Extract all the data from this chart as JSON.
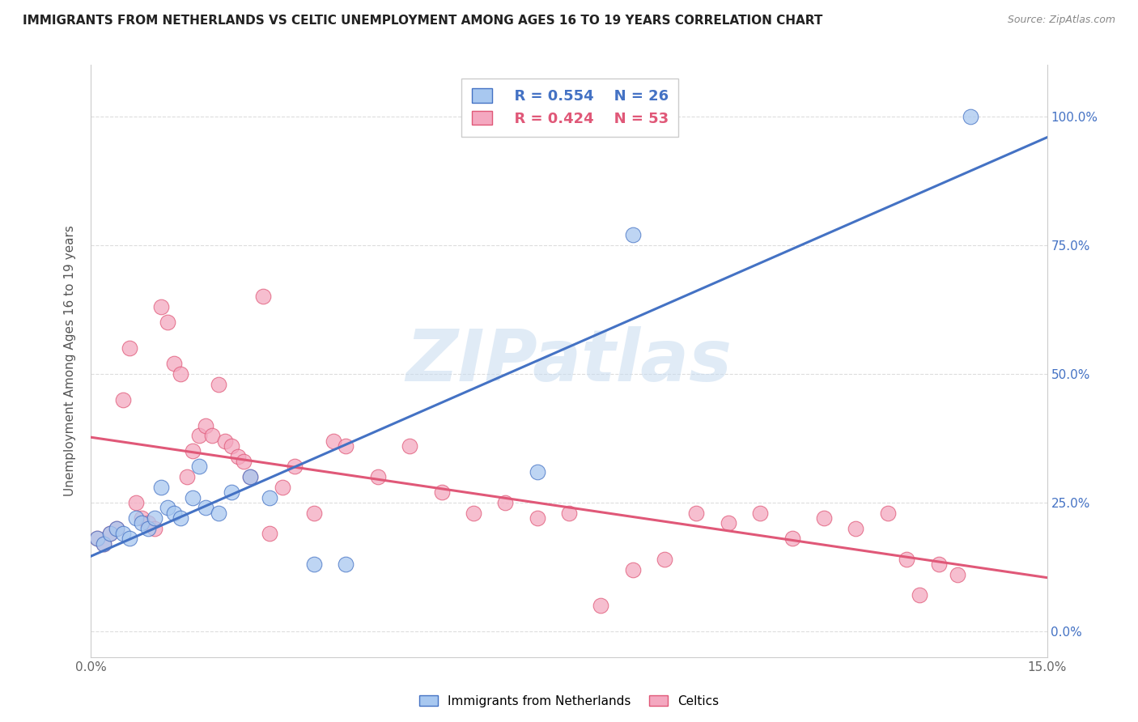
{
  "title": "IMMIGRANTS FROM NETHERLANDS VS CELTIC UNEMPLOYMENT AMONG AGES 16 TO 19 YEARS CORRELATION CHART",
  "source": "Source: ZipAtlas.com",
  "ylabel": "Unemployment Among Ages 16 to 19 years",
  "xlim": [
    0.0,
    0.15
  ],
  "ylim": [
    -0.05,
    1.1
  ],
  "legend_blue_r": "R = 0.554",
  "legend_blue_n": "N = 26",
  "legend_pink_r": "R = 0.424",
  "legend_pink_n": "N = 53",
  "blue_color": "#A8C8F0",
  "pink_color": "#F4A8C0",
  "blue_line_color": "#4472C4",
  "pink_line_color": "#E05878",
  "watermark": "ZIPatlas",
  "blue_scatter_x": [
    0.001,
    0.002,
    0.003,
    0.004,
    0.005,
    0.006,
    0.007,
    0.008,
    0.009,
    0.01,
    0.011,
    0.012,
    0.013,
    0.014,
    0.016,
    0.017,
    0.018,
    0.02,
    0.022,
    0.025,
    0.028,
    0.035,
    0.04,
    0.07,
    0.085,
    0.138
  ],
  "blue_scatter_y": [
    0.18,
    0.17,
    0.19,
    0.2,
    0.19,
    0.18,
    0.22,
    0.21,
    0.2,
    0.22,
    0.28,
    0.24,
    0.23,
    0.22,
    0.26,
    0.32,
    0.24,
    0.23,
    0.27,
    0.3,
    0.26,
    0.13,
    0.13,
    0.31,
    0.77,
    1.0
  ],
  "pink_scatter_x": [
    0.001,
    0.002,
    0.003,
    0.004,
    0.005,
    0.006,
    0.007,
    0.008,
    0.009,
    0.01,
    0.011,
    0.012,
    0.013,
    0.014,
    0.015,
    0.016,
    0.017,
    0.018,
    0.019,
    0.02,
    0.021,
    0.022,
    0.023,
    0.024,
    0.025,
    0.027,
    0.028,
    0.03,
    0.032,
    0.035,
    0.038,
    0.04,
    0.045,
    0.05,
    0.055,
    0.06,
    0.065,
    0.07,
    0.075,
    0.08,
    0.085,
    0.09,
    0.095,
    0.1,
    0.105,
    0.11,
    0.115,
    0.12,
    0.125,
    0.128,
    0.13,
    0.133,
    0.136
  ],
  "pink_scatter_y": [
    0.18,
    0.17,
    0.19,
    0.2,
    0.45,
    0.55,
    0.25,
    0.22,
    0.21,
    0.2,
    0.63,
    0.6,
    0.52,
    0.5,
    0.3,
    0.35,
    0.38,
    0.4,
    0.38,
    0.48,
    0.37,
    0.36,
    0.34,
    0.33,
    0.3,
    0.65,
    0.19,
    0.28,
    0.32,
    0.23,
    0.37,
    0.36,
    0.3,
    0.36,
    0.27,
    0.23,
    0.25,
    0.22,
    0.23,
    0.05,
    0.12,
    0.14,
    0.23,
    0.21,
    0.23,
    0.18,
    0.22,
    0.2,
    0.23,
    0.14,
    0.07,
    0.13,
    0.11
  ],
  "background_color": "#FFFFFF",
  "grid_color": "#DDDDDD"
}
